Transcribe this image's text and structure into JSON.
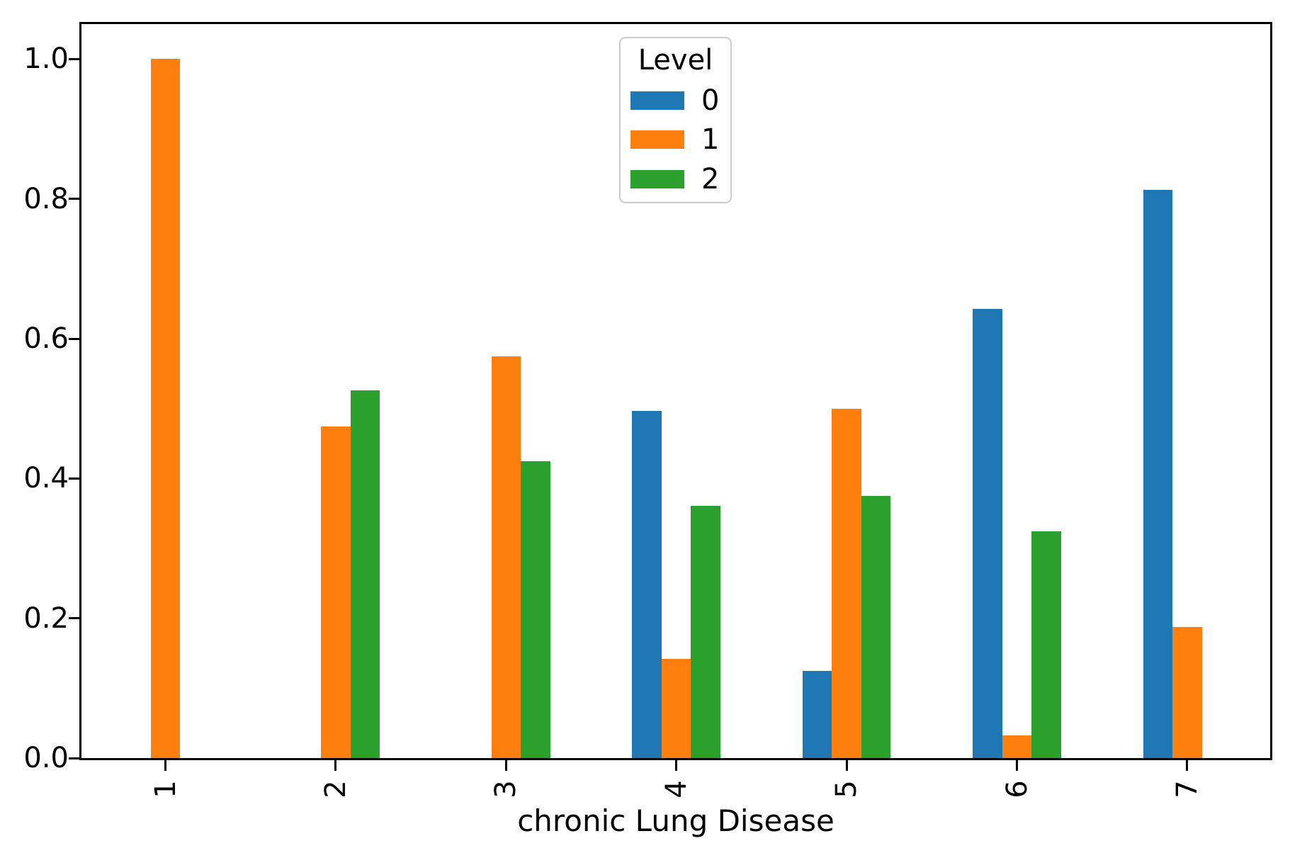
{
  "figure": {
    "legend": {
      "title": "Level",
      "entries": [
        {
          "label": "0",
          "color": "#1f77b4"
        },
        {
          "label": "1",
          "color": "#ff7f0e"
        },
        {
          "label": "2",
          "color": "#2ca02c"
        }
      ]
    }
  },
  "chart_data": {
    "type": "bar",
    "title": "",
    "xlabel": "chronic Lung Disease",
    "ylabel": "",
    "categories": [
      "1",
      "2",
      "3",
      "4",
      "5",
      "6",
      "7"
    ],
    "series": [
      {
        "name": "0",
        "color": "#1f77b4",
        "values": [
          0,
          0,
          0,
          0.497,
          0.125,
          0.643,
          0.8125
        ]
      },
      {
        "name": "1",
        "color": "#ff7f0e",
        "values": [
          1.0,
          0.474,
          0.575,
          0.142,
          0.5,
          0.032,
          0.1875
        ]
      },
      {
        "name": "2",
        "color": "#2ca02c",
        "values": [
          0,
          0.526,
          0.425,
          0.361,
          0.375,
          0.324,
          0
        ]
      }
    ],
    "ylim": [
      0,
      1.05
    ],
    "yticks": [
      "0.0",
      "0.2",
      "0.4",
      "0.6",
      "0.8",
      "1.0"
    ],
    "grid": false,
    "legend_title": "Level",
    "legend_position": "upper center",
    "x_tick_rotation": 90
  }
}
